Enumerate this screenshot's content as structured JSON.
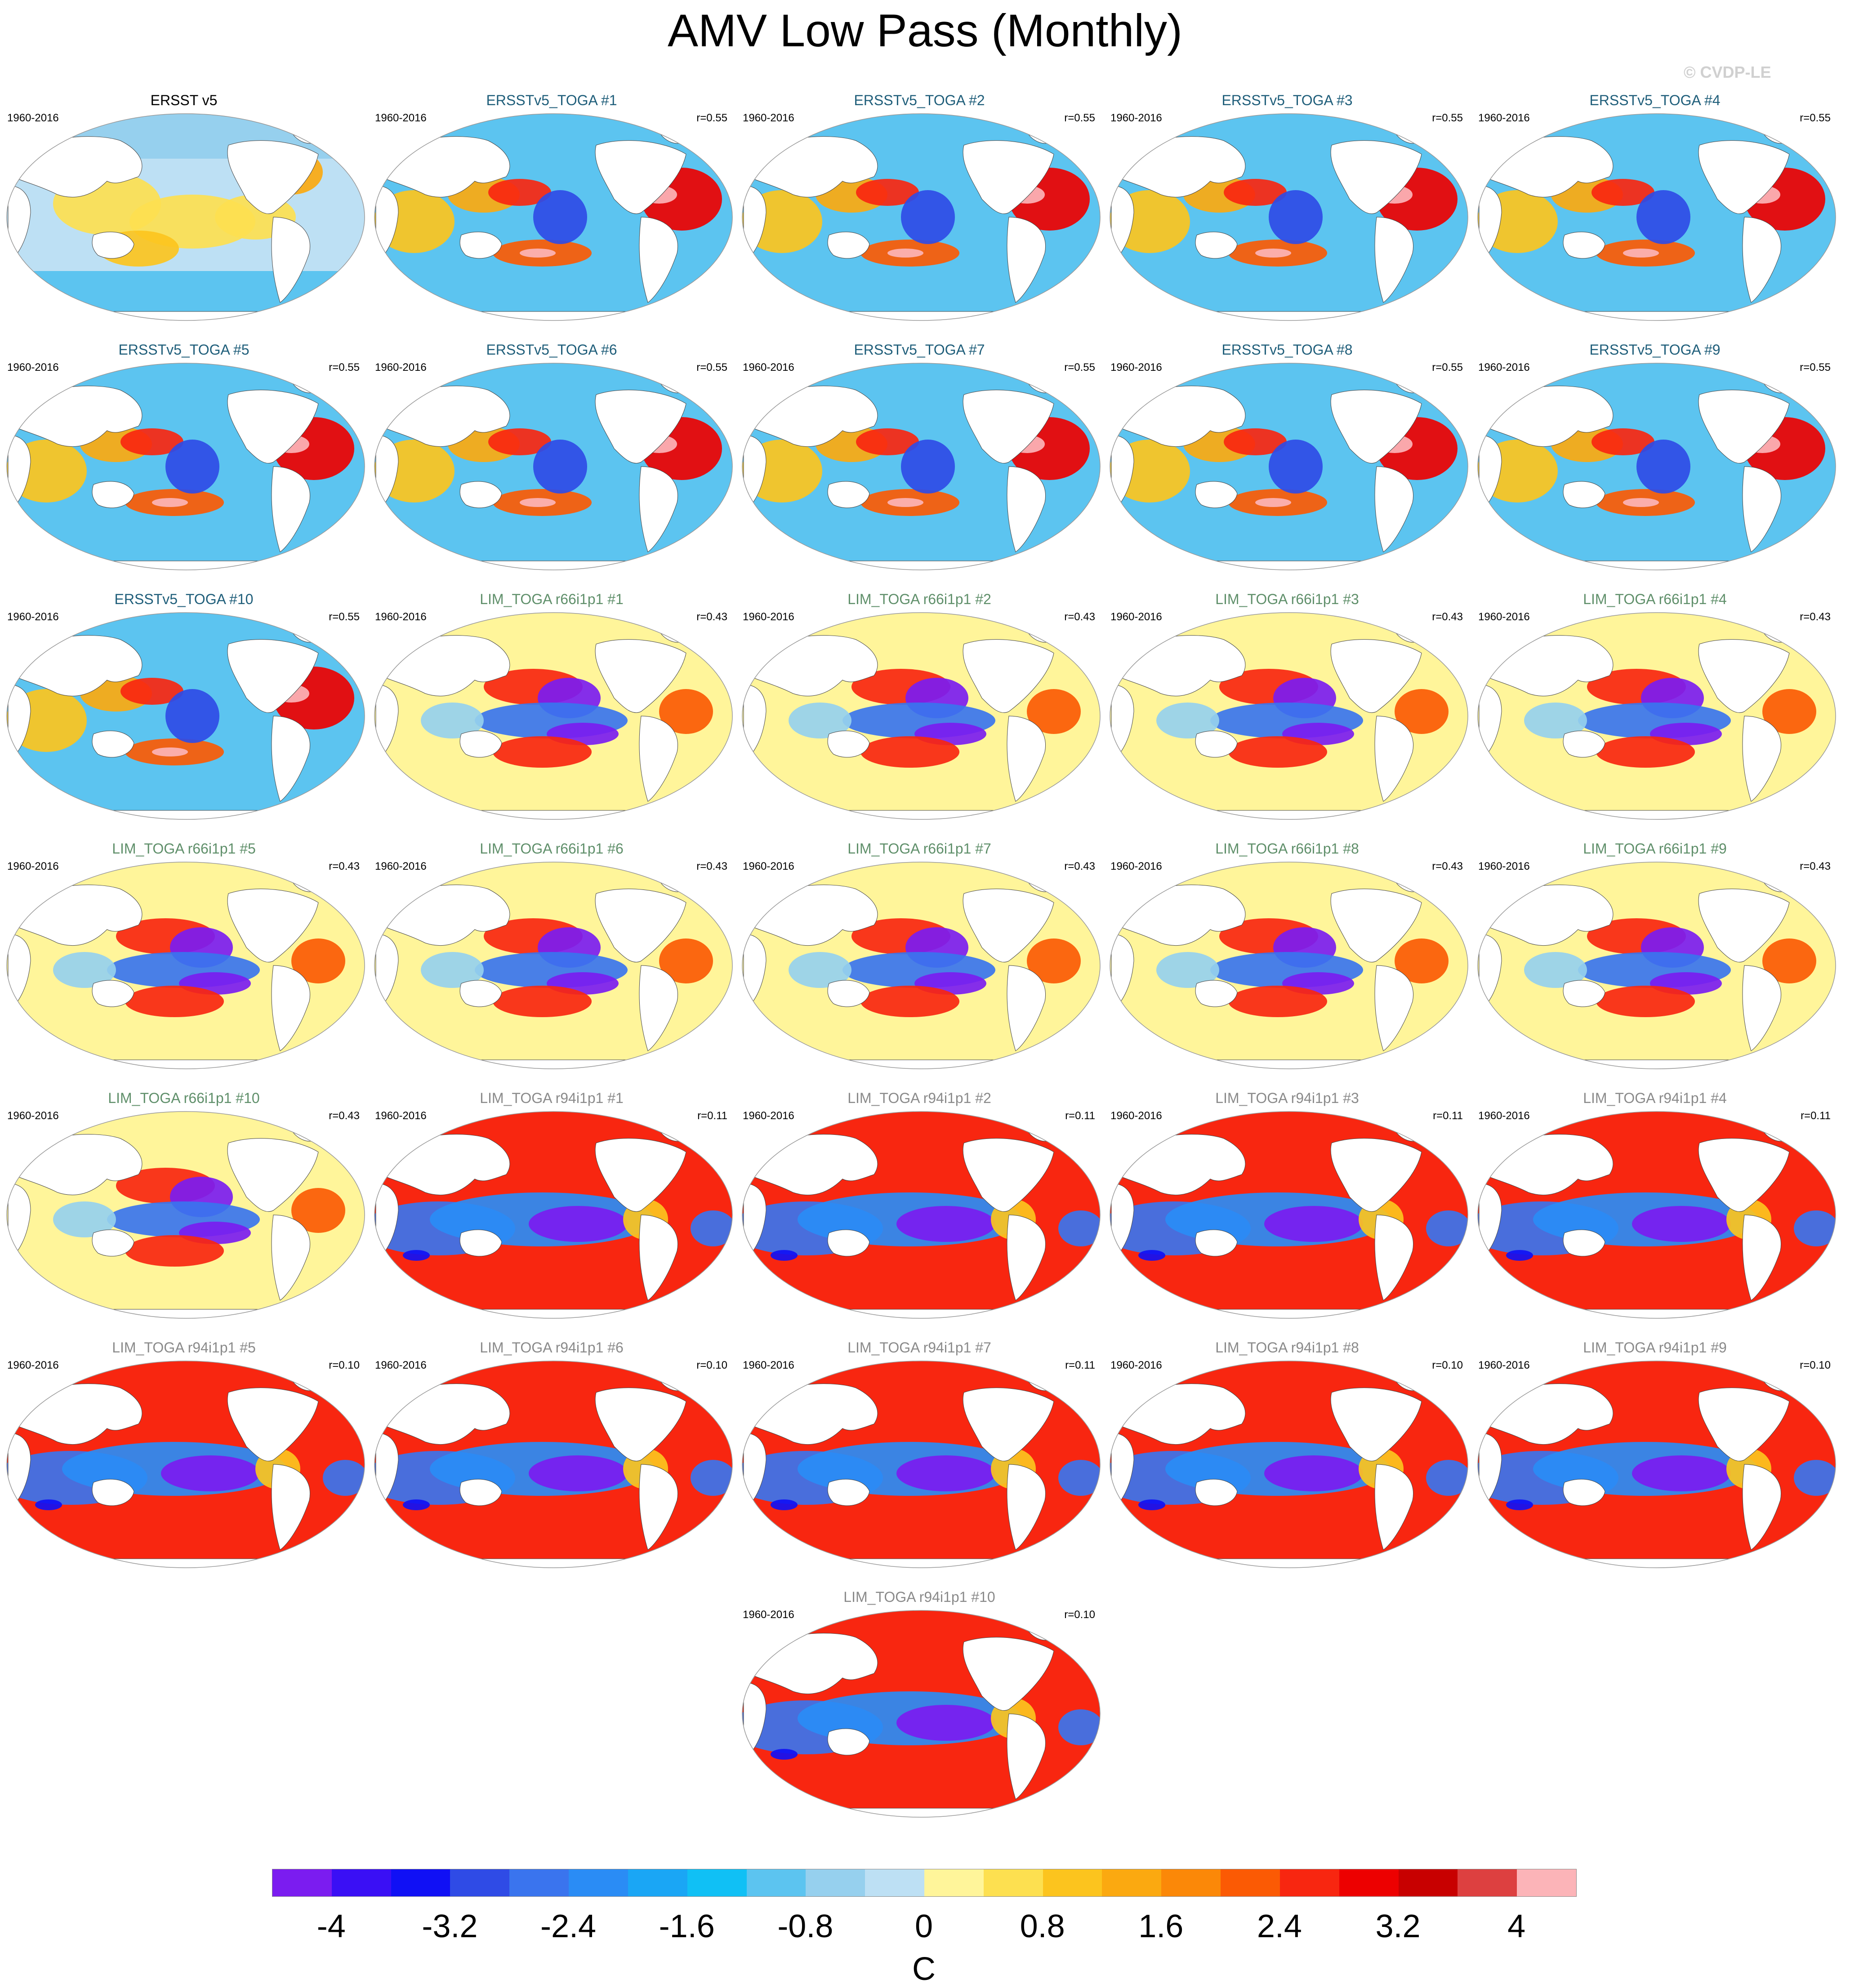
{
  "figure_title": "AMV Low Pass (Monthly)",
  "credit": "© CVDP-LE",
  "panels": [
    {
      "title": "ERSST v5",
      "years": "1960-2016",
      "corr": "",
      "title_color": "#000000",
      "pattern": "obs"
    },
    {
      "title": "ERSSTv5_TOGA #1",
      "years": "1960-2016",
      "corr": "r=0.55",
      "title_color": "#1f5e7a",
      "pattern": "ersst"
    },
    {
      "title": "ERSSTv5_TOGA #2",
      "years": "1960-2016",
      "corr": "r=0.55",
      "title_color": "#1f5e7a",
      "pattern": "ersst"
    },
    {
      "title": "ERSSTv5_TOGA #3",
      "years": "1960-2016",
      "corr": "r=0.55",
      "title_color": "#1f5e7a",
      "pattern": "ersst"
    },
    {
      "title": "ERSSTv5_TOGA #4",
      "years": "1960-2016",
      "corr": "r=0.55",
      "title_color": "#1f5e7a",
      "pattern": "ersst"
    },
    {
      "title": "ERSSTv5_TOGA #5",
      "years": "1960-2016",
      "corr": "r=0.55",
      "title_color": "#1f5e7a",
      "pattern": "ersst"
    },
    {
      "title": "ERSSTv5_TOGA #6",
      "years": "1960-2016",
      "corr": "r=0.55",
      "title_color": "#1f5e7a",
      "pattern": "ersst"
    },
    {
      "title": "ERSSTv5_TOGA #7",
      "years": "1960-2016",
      "corr": "r=0.55",
      "title_color": "#1f5e7a",
      "pattern": "ersst"
    },
    {
      "title": "ERSSTv5_TOGA #8",
      "years": "1960-2016",
      "corr": "r=0.55",
      "title_color": "#1f5e7a",
      "pattern": "ersst"
    },
    {
      "title": "ERSSTv5_TOGA #9",
      "years": "1960-2016",
      "corr": "r=0.55",
      "title_color": "#1f5e7a",
      "pattern": "ersst"
    },
    {
      "title": "ERSSTv5_TOGA #10",
      "years": "1960-2016",
      "corr": "r=0.55",
      "title_color": "#1f5e7a",
      "pattern": "ersst"
    },
    {
      "title": "LIM_TOGA r66i1p1 #1",
      "years": "1960-2016",
      "corr": "r=0.43",
      "title_color": "#5f8f6a",
      "pattern": "r66"
    },
    {
      "title": "LIM_TOGA r66i1p1 #2",
      "years": "1960-2016",
      "corr": "r=0.43",
      "title_color": "#5f8f6a",
      "pattern": "r66"
    },
    {
      "title": "LIM_TOGA r66i1p1 #3",
      "years": "1960-2016",
      "corr": "r=0.43",
      "title_color": "#5f8f6a",
      "pattern": "r66"
    },
    {
      "title": "LIM_TOGA r66i1p1 #4",
      "years": "1960-2016",
      "corr": "r=0.43",
      "title_color": "#5f8f6a",
      "pattern": "r66"
    },
    {
      "title": "LIM_TOGA r66i1p1 #5",
      "years": "1960-2016",
      "corr": "r=0.43",
      "title_color": "#5f8f6a",
      "pattern": "r66"
    },
    {
      "title": "LIM_TOGA r66i1p1 #6",
      "years": "1960-2016",
      "corr": "r=0.43",
      "title_color": "#5f8f6a",
      "pattern": "r66"
    },
    {
      "title": "LIM_TOGA r66i1p1 #7",
      "years": "1960-2016",
      "corr": "r=0.43",
      "title_color": "#5f8f6a",
      "pattern": "r66"
    },
    {
      "title": "LIM_TOGA r66i1p1 #8",
      "years": "1960-2016",
      "corr": "r=0.43",
      "title_color": "#5f8f6a",
      "pattern": "r66"
    },
    {
      "title": "LIM_TOGA r66i1p1 #9",
      "years": "1960-2016",
      "corr": "r=0.43",
      "title_color": "#5f8f6a",
      "pattern": "r66"
    },
    {
      "title": "LIM_TOGA r66i1p1 #10",
      "years": "1960-2016",
      "corr": "r=0.43",
      "title_color": "#5f8f6a",
      "pattern": "r66"
    },
    {
      "title": "LIM_TOGA r94i1p1 #1",
      "years": "1960-2016",
      "corr": "r=0.11",
      "title_color": "#8a8a8a",
      "pattern": "r94"
    },
    {
      "title": "LIM_TOGA r94i1p1 #2",
      "years": "1960-2016",
      "corr": "r=0.11",
      "title_color": "#8a8a8a",
      "pattern": "r94"
    },
    {
      "title": "LIM_TOGA r94i1p1 #3",
      "years": "1960-2016",
      "corr": "r=0.11",
      "title_color": "#8a8a8a",
      "pattern": "r94"
    },
    {
      "title": "LIM_TOGA r94i1p1 #4",
      "years": "1960-2016",
      "corr": "r=0.11",
      "title_color": "#8a8a8a",
      "pattern": "r94"
    },
    {
      "title": "LIM_TOGA r94i1p1 #5",
      "years": "1960-2016",
      "corr": "r=0.10",
      "title_color": "#8a8a8a",
      "pattern": "r94"
    },
    {
      "title": "LIM_TOGA r94i1p1 #6",
      "years": "1960-2016",
      "corr": "r=0.10",
      "title_color": "#8a8a8a",
      "pattern": "r94"
    },
    {
      "title": "LIM_TOGA r94i1p1 #7",
      "years": "1960-2016",
      "corr": "r=0.11",
      "title_color": "#8a8a8a",
      "pattern": "r94"
    },
    {
      "title": "LIM_TOGA r94i1p1 #8",
      "years": "1960-2016",
      "corr": "r=0.10",
      "title_color": "#8a8a8a",
      "pattern": "r94"
    },
    {
      "title": "LIM_TOGA r94i1p1 #9",
      "years": "1960-2016",
      "corr": "r=0.10",
      "title_color": "#8a8a8a",
      "pattern": "r94"
    },
    {
      "title": "LIM_TOGA r94i1p1 #10",
      "years": "1960-2016",
      "corr": "r=0.10",
      "title_color": "#8a8a8a",
      "pattern": "r94"
    }
  ],
  "colorbar": {
    "colors": [
      "#7b1cf0",
      "#3a0ff5",
      "#1010f5",
      "#2f4be6",
      "#3a74ee",
      "#2a8cf5",
      "#1aa6f5",
      "#10c0f5",
      "#5cc4f0",
      "#96d0ee",
      "#bde0f4",
      "#fff59a",
      "#fde050",
      "#fcc41e",
      "#fba910",
      "#fb8808",
      "#fb5a04",
      "#f82610",
      "#ed0000",
      "#c80000",
      "#dd4040",
      "#fcb4b8"
    ],
    "labels": [
      "-4",
      "-3.2",
      "-2.4",
      "-1.6",
      "-0.8",
      "0",
      "0.8",
      "1.6",
      "2.4",
      "3.2",
      "4"
    ],
    "unit": "C"
  }
}
